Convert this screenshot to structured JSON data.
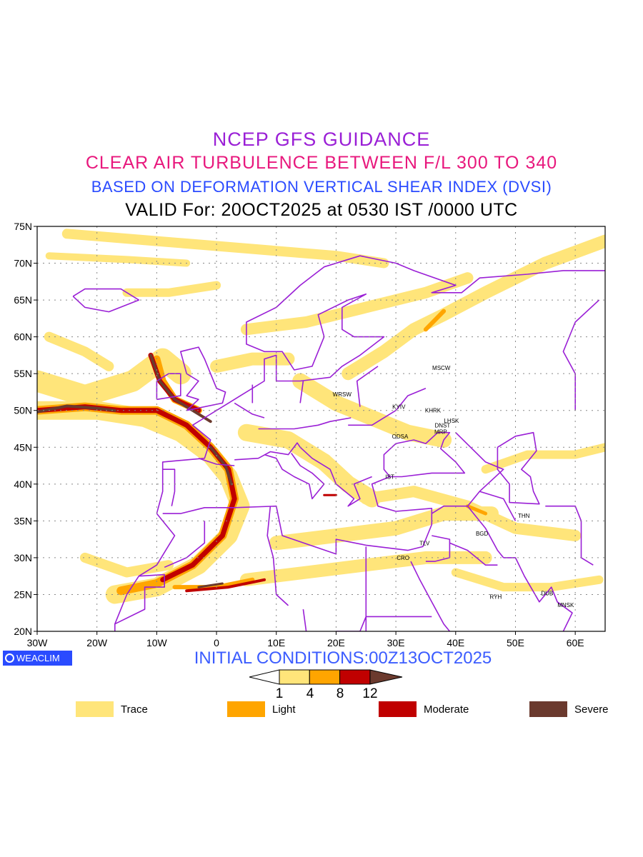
{
  "header": {
    "line1": "NCEP GFS GUIDANCE",
    "line2": "CLEAR AIR TURBULENCE BETWEEN F/L 300 TO 340",
    "line3": "BASED ON DEFORMATION VERTICAL SHEAR INDEX (DVSI)",
    "line4": "VALID For: 20OCT2025 at 0530 IST /0000 UTC"
  },
  "map": {
    "lon_range": [
      -30,
      65
    ],
    "lat_range": [
      20,
      75
    ],
    "lon_ticks": [
      {
        "value": -30,
        "label": "30W"
      },
      {
        "value": -20,
        "label": "20W"
      },
      {
        "value": -10,
        "label": "10W"
      },
      {
        "value": 0,
        "label": "0"
      },
      {
        "value": 10,
        "label": "10E"
      },
      {
        "value": 20,
        "label": "20E"
      },
      {
        "value": 30,
        "label": "30E"
      },
      {
        "value": 40,
        "label": "40E"
      },
      {
        "value": 50,
        "label": "50E"
      },
      {
        "value": 60,
        "label": "60E"
      }
    ],
    "lat_ticks": [
      {
        "value": 20,
        "label": "20N"
      },
      {
        "value": 25,
        "label": "25N"
      },
      {
        "value": 30,
        "label": "30N"
      },
      {
        "value": 35,
        "label": "35N"
      },
      {
        "value": 40,
        "label": "40N"
      },
      {
        "value": 45,
        "label": "45N"
      },
      {
        "value": 50,
        "label": "50N"
      },
      {
        "value": 55,
        "label": "55N"
      },
      {
        "value": 60,
        "label": "60N"
      },
      {
        "value": 65,
        "label": "65N"
      },
      {
        "value": 70,
        "label": "70N"
      },
      {
        "value": 75,
        "label": "75N"
      }
    ],
    "cities": [
      {
        "label": "MSCW",
        "lon": 37.6,
        "lat": 55.8
      },
      {
        "label": "WRSW",
        "lon": 21.0,
        "lat": 52.2
      },
      {
        "label": "KYIV",
        "lon": 30.5,
        "lat": 50.5
      },
      {
        "label": "KHRK",
        "lon": 36.2,
        "lat": 50.0
      },
      {
        "label": "LHSK",
        "lon": 39.3,
        "lat": 48.6
      },
      {
        "label": "DNST",
        "lon": 37.8,
        "lat": 48.0
      },
      {
        "label": "MRP",
        "lon": 37.5,
        "lat": 47.1
      },
      {
        "label": "ODSA",
        "lon": 30.7,
        "lat": 46.5
      },
      {
        "label": "IST",
        "lon": 29.0,
        "lat": 41.0
      },
      {
        "label": "THN",
        "lon": 51.4,
        "lat": 35.7
      },
      {
        "label": "BGD",
        "lon": 44.4,
        "lat": 33.3
      },
      {
        "label": "TLV",
        "lon": 34.8,
        "lat": 32.0
      },
      {
        "label": "CRO",
        "lon": 31.2,
        "lat": 30.0
      },
      {
        "label": "MNSK",
        "lon": 58.4,
        "lat": 23.6
      },
      {
        "label": "DUB",
        "lon": 55.3,
        "lat": 25.2
      },
      {
        "label": "RYH",
        "lon": 46.7,
        "lat": 24.7
      }
    ]
  },
  "footer": {
    "logo": "WEACLIM",
    "initial_conditions": "INITIAL CONDITIONS:00Z13OCT2025"
  },
  "colorbar": {
    "labels": [
      "1",
      "4",
      "8",
      "12"
    ],
    "colors": [
      "#ffe57a",
      "#ffa500",
      "#c00000",
      "#6b3a2e"
    ]
  },
  "legend": [
    {
      "label": "Trace",
      "color": "#ffe57a"
    },
    {
      "label": "Light",
      "color": "#ffa500"
    },
    {
      "label": "Moderate",
      "color": "#c00000"
    },
    {
      "label": "Severe",
      "color": "#6b3a2e"
    }
  ],
  "colors": {
    "boundary": "#9a1fd6",
    "grid": "#999999"
  }
}
